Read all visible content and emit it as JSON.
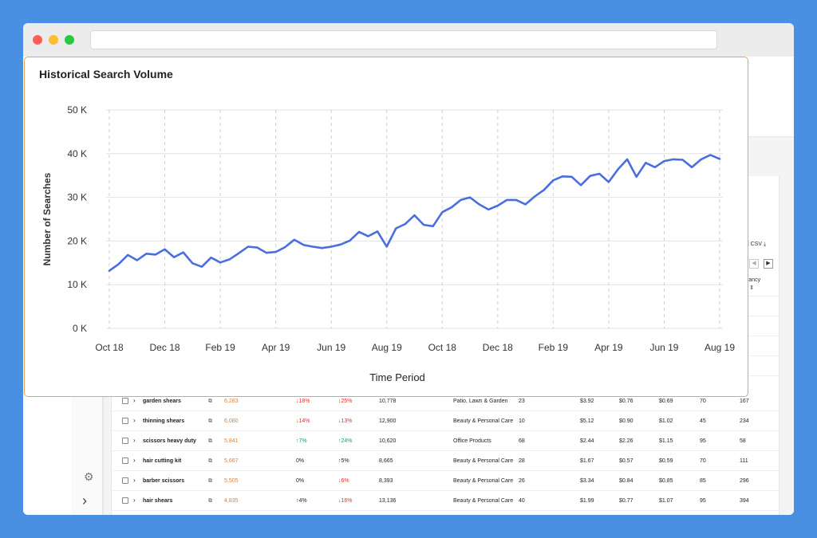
{
  "colors": {
    "line": "#4a6ee0",
    "accent": "#f5a04a",
    "background": "#4a90e2"
  },
  "icons": {
    "gear": "gear-icon",
    "expand": "chevron-right-icon",
    "external": "external-link-icon",
    "download": "download-icon"
  },
  "table": {
    "download_label": "oad CSV",
    "relevancy_header": "evancy\nre",
    "rows": [
      {
        "keyword": "garden shears",
        "volume": "6,283",
        "trend1": "18%",
        "trend1_dir": "down",
        "trend2": "25%",
        "trend2_dir": "down",
        "searches": "10,778",
        "category": "Patio, Lawn & Garden",
        "n1": "23",
        "p1": "$3.92",
        "p2": "$0.76",
        "p3": "$0.69",
        "n2": "70",
        "n3": "167"
      },
      {
        "keyword": "thinning shears",
        "volume": "6,080",
        "trend1": "14%",
        "trend1_dir": "down",
        "trend2": "13%",
        "trend2_dir": "down",
        "searches": "12,900",
        "category": "Beauty & Personal Care",
        "n1": "10",
        "p1": "$5.12",
        "p2": "$0.90",
        "p3": "$1.02",
        "n2": "45",
        "n3": "234"
      },
      {
        "keyword": "scissors heavy duty",
        "volume": "5,841",
        "trend1": "7%",
        "trend1_dir": "up",
        "trend2": "24%",
        "trend2_dir": "up",
        "searches": "10,620",
        "category": "Office Products",
        "n1": "68",
        "p1": "$2.44",
        "p2": "$2.26",
        "p3": "$1.15",
        "n2": "95",
        "n3": "58"
      },
      {
        "keyword": "hair cutting kit",
        "volume": "5,667",
        "trend1": "0%",
        "trend1_dir": "flat",
        "trend2": "5%",
        "trend2_dir": "upblack",
        "searches": "8,665",
        "category": "Beauty & Personal Care",
        "n1": "28",
        "p1": "$1.67",
        "p2": "$0.57",
        "p3": "$0.59",
        "n2": "70",
        "n3": "111"
      },
      {
        "keyword": "barber scissors",
        "volume": "5,505",
        "trend1": "0%",
        "trend1_dir": "flat",
        "trend2": "6%",
        "trend2_dir": "down",
        "searches": "8,393",
        "category": "Beauty & Personal Care",
        "n1": "26",
        "p1": "$3.34",
        "p2": "$0.84",
        "p3": "$0.85",
        "n2": "85",
        "n3": "296"
      },
      {
        "keyword": "hair shears",
        "volume": "4,835",
        "trend1": "4%",
        "trend1_dir": "upblack",
        "trend2": "16%",
        "trend2_dir": "down",
        "searches": "13,136",
        "category": "Beauty & Personal Care",
        "n1": "40",
        "p1": "$1.99",
        "p2": "$0.77",
        "p3": "$1.07",
        "n2": "95",
        "n3": "394"
      }
    ]
  },
  "chart_data": {
    "type": "line",
    "title": "Historical Search Volume",
    "xlabel": "Time Period",
    "ylabel": "Number of Searches",
    "ylim": [
      0,
      50000
    ],
    "yticks": [
      {
        "value": 0,
        "label": "0 K"
      },
      {
        "value": 10000,
        "label": "10 K"
      },
      {
        "value": 20000,
        "label": "20  K"
      },
      {
        "value": 30000,
        "label": "30 K"
      },
      {
        "value": 40000,
        "label": "40 K"
      },
      {
        "value": 50000,
        "label": "50 K"
      }
    ],
    "xticks": [
      "Oct 18",
      "Dec 18",
      "Feb 19",
      "Apr 19",
      "Jun 19",
      "Aug 19",
      "Oct 18",
      "Dec 18",
      "Feb 19",
      "Apr 19",
      "Jun 19",
      "Aug 19"
    ],
    "grid": true,
    "legend": "none",
    "values": [
      13200,
      14700,
      16800,
      15600,
      17100,
      16900,
      18100,
      16300,
      17400,
      14900,
      14100,
      16200,
      15100,
      15800,
      17200,
      18700,
      18500,
      17300,
      17500,
      18600,
      20300,
      19100,
      18700,
      18400,
      18700,
      19200,
      20100,
      22100,
      21100,
      22200,
      18700,
      22900,
      23900,
      25900,
      23700,
      23400,
      26600,
      27700,
      29400,
      30000,
      28400,
      27200,
      28100,
      29400,
      29400,
      28400,
      30200,
      31700,
      33900,
      34800,
      34700,
      32800,
      34900,
      35400,
      33500,
      36400,
      38700,
      34700,
      37900,
      36900,
      38300,
      38700,
      38600,
      36900,
      38700,
      39700,
      38800
    ]
  }
}
